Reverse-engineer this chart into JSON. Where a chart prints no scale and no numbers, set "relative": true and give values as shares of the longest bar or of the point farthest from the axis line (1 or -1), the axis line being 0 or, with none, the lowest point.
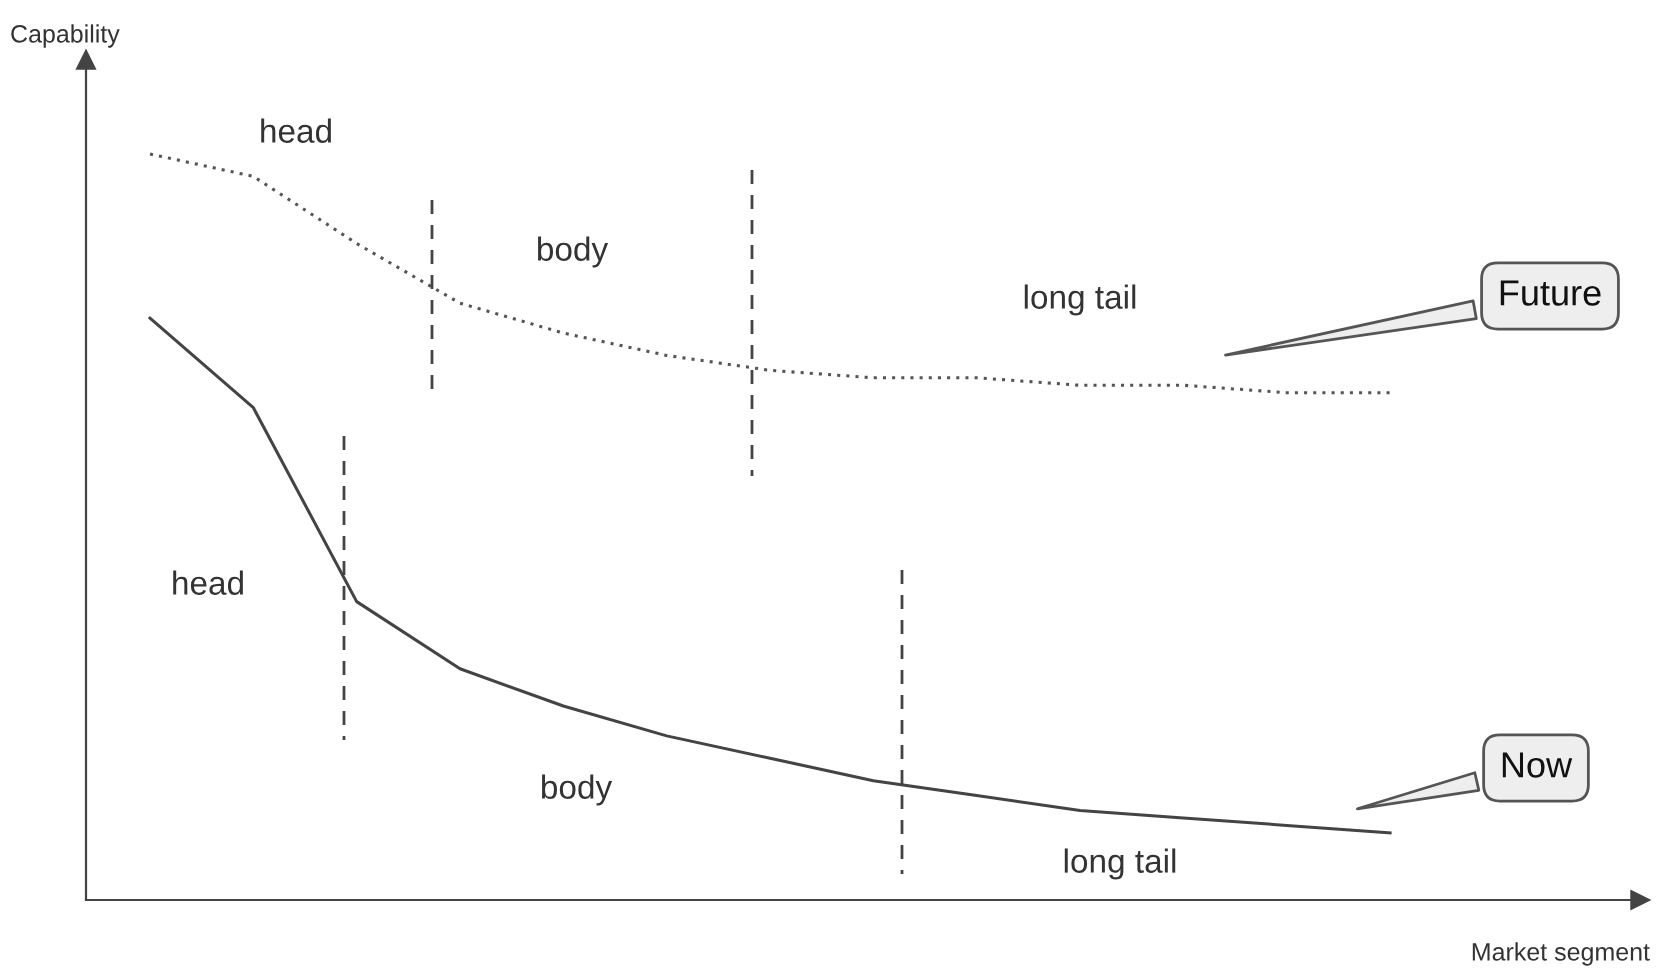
{
  "chart_data": {
    "type": "line",
    "relative": true,
    "xlabel": "Market segment",
    "ylabel": "Capability",
    "categories": [
      null,
      null,
      null,
      null,
      null,
      null,
      null,
      null,
      null,
      null,
      null,
      null,
      null
    ],
    "series": [
      {
        "color": "#555555",
        "line_style": "dotted",
        "values": [
          1.0,
          0.97,
          0.88,
          0.8,
          0.76,
          0.73,
          0.71,
          0.7,
          0.7,
          0.69,
          0.69,
          0.68,
          0.68
        ]
      },
      {
        "color": "#444444",
        "line_style": "solid",
        "values": [
          0.78,
          0.66,
          0.4,
          0.31,
          0.26,
          0.22,
          0.19,
          0.16,
          0.14,
          0.12,
          0.11,
          0.1,
          0.09
        ]
      }
    ],
    "annotations": [
      "head",
      "body",
      "long tail",
      "head",
      "body",
      "long tail",
      "Future",
      "Now"
    ],
    "legend": false,
    "marker": "none"
  }
}
